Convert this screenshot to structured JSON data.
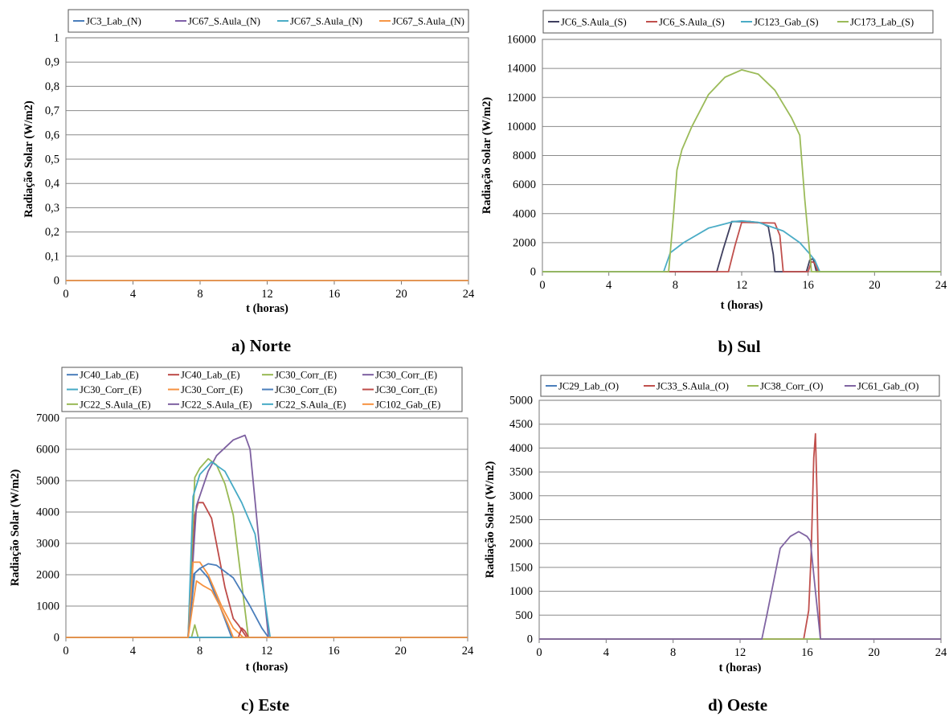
{
  "chart_data": [
    {
      "type": "line",
      "caption": "a) Norte",
      "xlabel": "t (horas)",
      "ylabel": "Radiação Solar (W/m2)",
      "xlim": [
        0,
        24
      ],
      "ylim": [
        0,
        1
      ],
      "xticks": [
        0,
        4,
        8,
        12,
        16,
        20,
        24
      ],
      "yticks": [
        0,
        0.1,
        0.2,
        0.3,
        0.4,
        0.5,
        0.6,
        0.7,
        0.8,
        0.9,
        1
      ],
      "ytick_labels": [
        "0",
        "0,1",
        "0,2",
        "0,3",
        "0,4",
        "0,5",
        "0,6",
        "0,7",
        "0,8",
        "0,9",
        "1"
      ],
      "grid": true,
      "legend_position": "top",
      "series": [
        {
          "name": "JC3_Lab_(N)",
          "color": "#4a7ebb",
          "points": [
            [
              0,
              0
            ],
            [
              24,
              0
            ]
          ]
        },
        {
          "name": "JC67_S.Aula_(N)",
          "color": "#7f5fa8",
          "points": [
            [
              0,
              0
            ],
            [
              24,
              0
            ]
          ]
        },
        {
          "name": "JC67_S.Aula_(N)",
          "color": "#4bacc6",
          "points": [
            [
              0,
              0
            ],
            [
              24,
              0
            ]
          ]
        },
        {
          "name": "JC67_S.Aula_(N)",
          "color": "#f79646",
          "points": [
            [
              0,
              0
            ],
            [
              24,
              0
            ]
          ]
        }
      ]
    },
    {
      "type": "line",
      "caption": "b) Sul",
      "xlabel": "t (horas)",
      "ylabel": "Radiação Solar (W/m2)",
      "xlim": [
        0,
        24
      ],
      "ylim": [
        0,
        16000
      ],
      "xticks": [
        0,
        4,
        8,
        12,
        16,
        20,
        24
      ],
      "yticks": [
        0,
        2000,
        4000,
        6000,
        8000,
        10000,
        12000,
        14000,
        16000
      ],
      "ytick_labels": [
        "0",
        "2000",
        "4000",
        "6000",
        "8000",
        "10000",
        "12000",
        "14000",
        "16000"
      ],
      "grid": true,
      "legend_position": "top",
      "series": [
        {
          "name": "JC6_S.Aula_(S)",
          "color": "#3f3f5f",
          "points": [
            [
              0,
              0
            ],
            [
              10.5,
              0
            ],
            [
              10.9,
              1600
            ],
            [
              11.4,
              3450
            ],
            [
              12.5,
              3450
            ],
            [
              13.2,
              3350
            ],
            [
              13.6,
              3100
            ],
            [
              13.9,
              1200
            ],
            [
              14,
              0
            ],
            [
              15.9,
              0
            ],
            [
              16.1,
              800
            ],
            [
              16.3,
              900
            ],
            [
              16.5,
              0
            ],
            [
              24,
              0
            ]
          ]
        },
        {
          "name": "JC6_S.Aula_(S)",
          "color": "#c0504d",
          "points": [
            [
              0,
              0
            ],
            [
              11.2,
              0
            ],
            [
              11.6,
              1800
            ],
            [
              12,
              3400
            ],
            [
              14,
              3350
            ],
            [
              14.3,
              2500
            ],
            [
              14.5,
              0
            ],
            [
              16,
              0
            ],
            [
              16.2,
              700
            ],
            [
              16.4,
              600
            ],
            [
              16.6,
              0
            ],
            [
              24,
              0
            ]
          ]
        },
        {
          "name": "JC123_Gab_(S)",
          "color": "#4bacc6",
          "points": [
            [
              0,
              0
            ],
            [
              7.3,
              0
            ],
            [
              7.7,
              1300
            ],
            [
              8.5,
              2000
            ],
            [
              10,
              3000
            ],
            [
              11.5,
              3450
            ],
            [
              12,
              3500
            ],
            [
              13,
              3400
            ],
            [
              14.5,
              2800
            ],
            [
              15.5,
              2000
            ],
            [
              16,
              1350
            ],
            [
              16.4,
              800
            ],
            [
              16.7,
              0
            ],
            [
              24,
              0
            ]
          ]
        },
        {
          "name": "JC173_Lab_(S)",
          "color": "#9bbb59",
          "points": [
            [
              0,
              0
            ],
            [
              7.6,
              0
            ],
            [
              7.9,
              4000
            ],
            [
              8.1,
              7000
            ],
            [
              8.4,
              8400
            ],
            [
              9,
              10000
            ],
            [
              10,
              12200
            ],
            [
              11,
              13400
            ],
            [
              12,
              13900
            ],
            [
              13,
              13600
            ],
            [
              14,
              12500
            ],
            [
              15,
              10600
            ],
            [
              15.5,
              9400
            ],
            [
              15.8,
              5000
            ],
            [
              16.2,
              0
            ],
            [
              24,
              0
            ]
          ]
        }
      ]
    },
    {
      "type": "line",
      "caption": "c) Este",
      "xlabel": "t (horas)",
      "ylabel": "Radiação Solar (W/m2)",
      "xlim": [
        0,
        24
      ],
      "ylim": [
        0,
        7000
      ],
      "xticks": [
        0,
        4,
        8,
        12,
        16,
        20,
        24
      ],
      "yticks": [
        0,
        1000,
        2000,
        3000,
        4000,
        5000,
        6000,
        7000
      ],
      "ytick_labels": [
        "0",
        "1000",
        "2000",
        "3000",
        "4000",
        "5000",
        "6000",
        "7000"
      ],
      "grid": true,
      "legend_position": "top",
      "series": [
        {
          "name": "JC40_Lab_(E)",
          "color": "#4a7ebb",
          "points": [
            [
              0,
              0
            ],
            [
              7.3,
              0
            ],
            [
              7.6,
              2000
            ],
            [
              8,
              2200
            ],
            [
              8.5,
              1900
            ],
            [
              9.2,
              1000
            ],
            [
              9.9,
              0
            ],
            [
              24,
              0
            ]
          ]
        },
        {
          "name": "JC40_Lab_(E)",
          "color": "#be4b48",
          "points": [
            [
              0,
              0
            ],
            [
              7.3,
              0
            ],
            [
              7.7,
              3900
            ],
            [
              7.9,
              4300
            ],
            [
              8.2,
              4300
            ],
            [
              8.7,
              3800
            ],
            [
              9.1,
              2700
            ],
            [
              9.5,
              1600
            ],
            [
              10,
              600
            ],
            [
              10.3,
              400
            ],
            [
              10.8,
              0
            ],
            [
              24,
              0
            ]
          ]
        },
        {
          "name": "JC30_Corr_(E)",
          "color": "#98b954",
          "points": [
            [
              0,
              0
            ],
            [
              7.3,
              0
            ],
            [
              7.7,
              5100
            ],
            [
              8,
              5400
            ],
            [
              8.5,
              5700
            ],
            [
              9,
              5500
            ],
            [
              9.5,
              4900
            ],
            [
              10,
              3900
            ],
            [
              10.6,
              1300
            ],
            [
              10.9,
              0
            ],
            [
              24,
              0
            ]
          ]
        },
        {
          "name": "JC30_Corr_(E)",
          "color": "#7d60a0",
          "points": [
            [
              0,
              0
            ],
            [
              7.3,
              0
            ],
            [
              7.8,
              4200
            ],
            [
              8.5,
              5300
            ],
            [
              9,
              5800
            ],
            [
              10,
              6300
            ],
            [
              10.7,
              6450
            ],
            [
              11,
              6000
            ],
            [
              11.4,
              3800
            ],
            [
              11.8,
              1600
            ],
            [
              12.1,
              0
            ],
            [
              24,
              0
            ]
          ]
        },
        {
          "name": "JC30_Corr_(E)",
          "color": "#46aac5",
          "points": [
            [
              0,
              0
            ],
            [
              7.3,
              0
            ],
            [
              7.6,
              4500
            ],
            [
              8,
              5200
            ],
            [
              8.7,
              5600
            ],
            [
              9.5,
              5300
            ],
            [
              10.5,
              4300
            ],
            [
              11.3,
              3300
            ],
            [
              11.8,
              1500
            ],
            [
              12.2,
              0
            ],
            [
              24,
              0
            ]
          ]
        },
        {
          "name": "JC30_Corr_(E)",
          "color": "#f69240",
          "points": [
            [
              0,
              0
            ],
            [
              7.3,
              0
            ],
            [
              7.6,
              2400
            ],
            [
              8,
              2400
            ],
            [
              8.5,
              2000
            ],
            [
              9.3,
              1000
            ],
            [
              10,
              300
            ],
            [
              10.6,
              0
            ],
            [
              24,
              0
            ]
          ]
        },
        {
          "name": "JC30_Corr_(E)",
          "color": "#4a7ebb",
          "points": [
            [
              0,
              0
            ],
            [
              7.3,
              0
            ],
            [
              7.7,
              2050
            ],
            [
              8,
              2200
            ],
            [
              8.5,
              2350
            ],
            [
              9,
              2300
            ],
            [
              10,
              1900
            ],
            [
              11,
              1000
            ],
            [
              11.7,
              300
            ],
            [
              12.1,
              0
            ],
            [
              24,
              0
            ]
          ]
        },
        {
          "name": "JC30_Corr_(E)",
          "color": "#be4b48",
          "points": [
            [
              0,
              0
            ],
            [
              10.3,
              0
            ],
            [
              10.5,
              300
            ],
            [
              10.7,
              200
            ],
            [
              10.9,
              0
            ],
            [
              24,
              0
            ]
          ]
        },
        {
          "name": "JC22_S.Aula_(E)",
          "color": "#98b954",
          "points": [
            [
              0,
              0
            ],
            [
              7.5,
              0
            ],
            [
              7.7,
              400
            ],
            [
              7.9,
              0
            ],
            [
              24,
              0
            ]
          ]
        },
        {
          "name": "JC22_S.Aula_(E)",
          "color": "#7d60a0",
          "points": [
            [
              0,
              0
            ],
            [
              24,
              0
            ]
          ]
        },
        {
          "name": "JC22_S.Aula_(E)",
          "color": "#46aac5",
          "points": [
            [
              0,
              0
            ],
            [
              24,
              0
            ]
          ]
        },
        {
          "name": "JC102_Gab_(E)",
          "color": "#f69240",
          "points": [
            [
              0,
              0
            ],
            [
              7.3,
              0
            ],
            [
              7.6,
              1100
            ],
            [
              7.8,
              1800
            ],
            [
              8.2,
              1650
            ],
            [
              8.7,
              1500
            ],
            [
              9.2,
              1000
            ],
            [
              9.7,
              400
            ],
            [
              10,
              0
            ],
            [
              24,
              0
            ]
          ]
        }
      ]
    },
    {
      "type": "line",
      "caption": "d) Oeste",
      "xlabel": "t (horas)",
      "ylabel": "Radiação Solar (W/m2)",
      "xlim": [
        0,
        24
      ],
      "ylim": [
        0,
        5000
      ],
      "xticks": [
        0,
        4,
        8,
        12,
        16,
        20,
        24
      ],
      "yticks": [
        0,
        500,
        1000,
        1500,
        2000,
        2500,
        3000,
        3500,
        4000,
        4500,
        5000
      ],
      "ytick_labels": [
        "0",
        "500",
        "1000",
        "1500",
        "2000",
        "2500",
        "3000",
        "3500",
        "4000",
        "4500",
        "5000"
      ],
      "grid": true,
      "legend_position": "top",
      "series": [
        {
          "name": "JC29_Lab_(O)",
          "color": "#4a7ebb",
          "points": [
            [
              0,
              0
            ],
            [
              24,
              0
            ]
          ]
        },
        {
          "name": "JC33_S.Aula_(O)",
          "color": "#c0504d",
          "points": [
            [
              0,
              0
            ],
            [
              15.8,
              0
            ],
            [
              16.1,
              600
            ],
            [
              16.25,
              1800
            ],
            [
              16.4,
              3800
            ],
            [
              16.5,
              4300
            ],
            [
              16.6,
              3000
            ],
            [
              16.7,
              1000
            ],
            [
              16.8,
              0
            ],
            [
              24,
              0
            ]
          ]
        },
        {
          "name": "JC38_Corr_(O)",
          "color": "#9bbb59",
          "points": [
            [
              0,
              0
            ],
            [
              24,
              0
            ]
          ]
        },
        {
          "name": "JC61_Gab_(O)",
          "color": "#8064a2",
          "points": [
            [
              0,
              0
            ],
            [
              13.3,
              0
            ],
            [
              13.6,
              500
            ],
            [
              14,
              1200
            ],
            [
              14.4,
              1900
            ],
            [
              15,
              2150
            ],
            [
              15.5,
              2250
            ],
            [
              16,
              2150
            ],
            [
              16.2,
              2050
            ],
            [
              16.5,
              1000
            ],
            [
              16.8,
              0
            ],
            [
              24,
              0
            ]
          ]
        }
      ]
    }
  ]
}
